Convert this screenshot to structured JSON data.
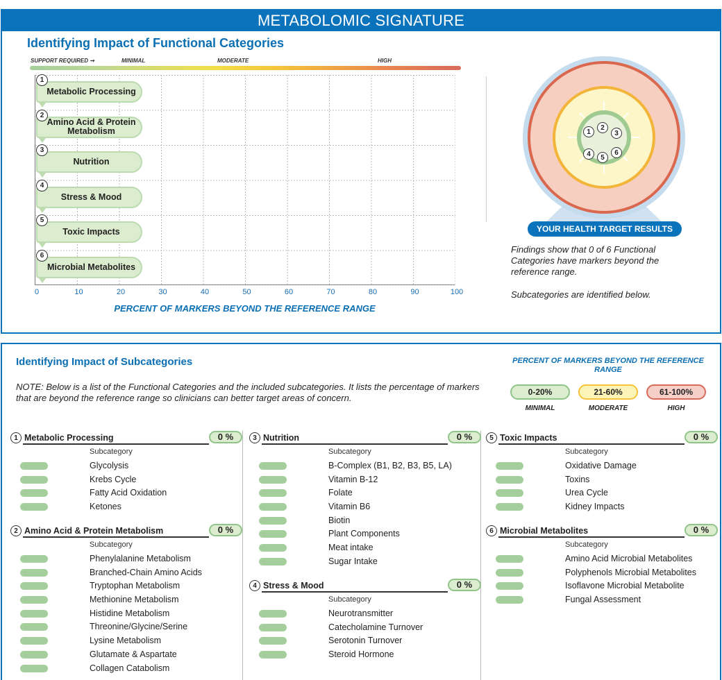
{
  "header": {
    "title": "METABOLOMIC SIGNATURE"
  },
  "top": {
    "subtitle": "Identifying Impact of Functional Categories",
    "scale": {
      "support_required": "SUPPORT REQUIRED ➞",
      "minimal": "MINIMAL",
      "moderate": "MODERATE",
      "high": "HIGH"
    },
    "categories": [
      {
        "num": "1",
        "label": "Metabolic Processing",
        "value": 0
      },
      {
        "num": "2",
        "label": "Amino Acid & Protein Metabolism",
        "value": 0
      },
      {
        "num": "3",
        "label": "Nutrition",
        "value": 0
      },
      {
        "num": "4",
        "label": "Stress & Mood",
        "value": 0
      },
      {
        "num": "5",
        "label": "Toxic Impacts",
        "value": 0
      },
      {
        "num": "6",
        "label": "Microbial Metabolites",
        "value": 0
      }
    ],
    "x_ticks": [
      "0",
      "10",
      "20",
      "30",
      "40",
      "50",
      "60",
      "70",
      "80",
      "90",
      "100"
    ],
    "x_axis_label": "PERCENT OF MARKERS BEYOND THE REFERENCE RANGE",
    "target": {
      "button": "YOUR HEALTH TARGET RESULTS",
      "nums": [
        "1",
        "2",
        "3",
        "4",
        "5",
        "6"
      ],
      "findings": "Findings show that 0 of 6 Functional Categories have markers beyond the reference range.",
      "subnote": "Subcategories are identified below."
    },
    "colors": {
      "blue": "#0a73bb",
      "minimal": "#a4cf9c",
      "moderate": "#f6c33a",
      "high": "#d86a5a"
    }
  },
  "chart_data": {
    "type": "bar",
    "categories": [
      "Metabolic Processing",
      "Amino Acid & Protein Metabolism",
      "Nutrition",
      "Stress & Mood",
      "Toxic Impacts",
      "Microbial Metabolites"
    ],
    "values": [
      0,
      0,
      0,
      0,
      0,
      0
    ],
    "xlabel": "PERCENT OF MARKERS BEYOND THE REFERENCE RANGE",
    "xlim": [
      0,
      100
    ],
    "orientation": "horizontal",
    "grid": true
  },
  "bottom": {
    "title": "Identifying Impact of Subcategories",
    "note": "NOTE: Below is a list of the Functional Categories and the included subcategories. It lists the percentage of markers that are beyond the reference range so clinicians can better target areas of concern.",
    "legend": {
      "title": "PERCENT OF MARKERS BEYOND THE REFERENCE RANGE",
      "items": [
        {
          "range": "0-20%",
          "label": "MINIMAL",
          "bg": "#dbeccf",
          "border": "#8fc589"
        },
        {
          "range": "21-60%",
          "label": "MODERATE",
          "bg": "#fdf4b8",
          "border": "#f6c33a"
        },
        {
          "range": "61-100%",
          "label": "HIGH",
          "bg": "#f6cfc8",
          "border": "#d86a5a"
        }
      ]
    },
    "subcat_header": "Subcategory",
    "groups": [
      {
        "num": "1",
        "title": "Metabolic Processing",
        "pct": "0 %",
        "items": [
          "Glycolysis",
          "Krebs Cycle",
          "Fatty Acid Oxidation",
          "Ketones"
        ]
      },
      {
        "num": "2",
        "title": "Amino Acid & Protein Metabolism",
        "pct": "0 %",
        "items": [
          "Phenylalanine Metabolism",
          "Branched-Chain Amino Acids",
          "Tryptophan Metabolism",
          "Methionine Metabolism",
          "Histidine Metabolism",
          "Threonine/Glycine/Serine",
          "Lysine Metabolism",
          "Glutamate & Aspartate",
          "Collagen Catabolism"
        ]
      },
      {
        "num": "3",
        "title": "Nutrition",
        "pct": "0 %",
        "items": [
          "B-Complex (B1, B2, B3, B5, LA)",
          "Vitamin B-12",
          "Folate",
          "Vitamin B6",
          "Biotin",
          "Plant Components",
          "Meat intake",
          "Sugar Intake"
        ]
      },
      {
        "num": "4",
        "title": "Stress & Mood",
        "pct": "0 %",
        "items": [
          "Neurotransmitter",
          "Catecholamine Turnover",
          "Serotonin Turnover",
          "Steroid Hormone"
        ]
      },
      {
        "num": "5",
        "title": "Toxic Impacts",
        "pct": "0 %",
        "items": [
          "Oxidative Damage",
          "Toxins",
          "Urea Cycle",
          "Kidney Impacts"
        ]
      },
      {
        "num": "6",
        "title": "Microbial Metabolites",
        "pct": "0 %",
        "items": [
          "Amino Acid Microbial Metabolites",
          "Polyphenols Microbial Metabolites",
          "Isoflavone Microbial Metabolite",
          "Fungal Assessment"
        ]
      }
    ]
  }
}
